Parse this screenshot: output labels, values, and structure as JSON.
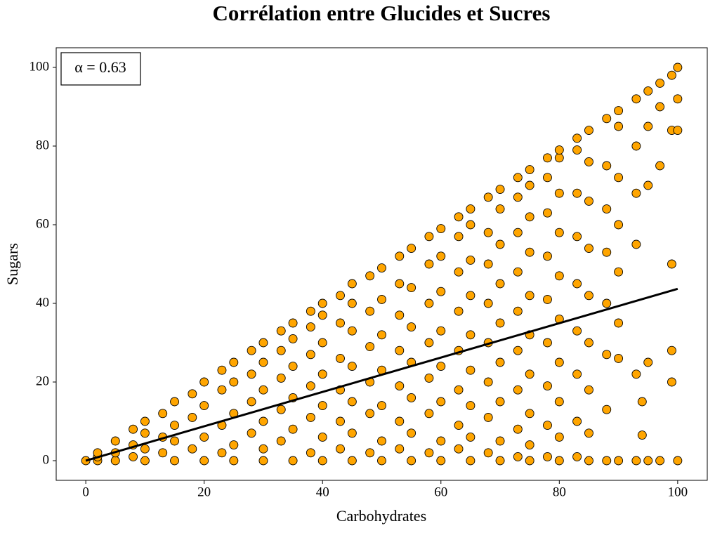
{
  "chart_data": {
    "type": "scatter",
    "title": "Corrélation entre Glucides et Sucres",
    "xlabel": "Carbohydrates",
    "ylabel": "Sugars",
    "annotation": "α = 0.63",
    "color": "#ffa500",
    "edgecolor": "#000000",
    "xlim": [
      -5,
      105
    ],
    "ylim": [
      -5,
      105
    ],
    "xticks": [
      0,
      20,
      40,
      60,
      80,
      100
    ],
    "yticks": [
      0,
      20,
      40,
      60,
      80,
      100
    ],
    "grid": false,
    "x": [
      0,
      2,
      2,
      2,
      5,
      5,
      5,
      8,
      8,
      8,
      10,
      10,
      10,
      10,
      13,
      13,
      13,
      15,
      15,
      15,
      15,
      18,
      18,
      18,
      20,
      20,
      20,
      20,
      23,
      23,
      23,
      23,
      25,
      25,
      25,
      25,
      25,
      28,
      28,
      28,
      28,
      30,
      30,
      30,
      30,
      30,
      30,
      33,
      33,
      33,
      33,
      33,
      35,
      35,
      35,
      35,
      35,
      35,
      38,
      38,
      38,
      38,
      38,
      38,
      40,
      40,
      40,
      40,
      40,
      40,
      40,
      43,
      43,
      43,
      43,
      43,
      43,
      45,
      45,
      45,
      45,
      45,
      45,
      45,
      48,
      48,
      48,
      48,
      48,
      48,
      50,
      50,
      50,
      50,
      50,
      50,
      50,
      53,
      53,
      53,
      53,
      53,
      53,
      53,
      55,
      55,
      55,
      55,
      55,
      55,
      55,
      58,
      58,
      58,
      58,
      58,
      58,
      58,
      60,
      60,
      60,
      60,
      60,
      60,
      60,
      60,
      63,
      63,
      63,
      63,
      63,
      63,
      63,
      63,
      65,
      65,
      65,
      65,
      65,
      65,
      65,
      65,
      65,
      68,
      68,
      68,
      68,
      68,
      68,
      68,
      68,
      70,
      70,
      70,
      70,
      70,
      70,
      70,
      70,
      70,
      73,
      73,
      73,
      73,
      73,
      73,
      73,
      73,
      73,
      75,
      75,
      75,
      75,
      75,
      75,
      75,
      75,
      75,
      75,
      78,
      78,
      78,
      78,
      78,
      78,
      78,
      78,
      78,
      80,
      80,
      80,
      80,
      80,
      80,
      80,
      80,
      80,
      80,
      83,
      83,
      83,
      83,
      83,
      83,
      83,
      83,
      83,
      85,
      85,
      85,
      85,
      85,
      85,
      85,
      85,
      85,
      88,
      88,
      88,
      88,
      88,
      88,
      88,
      88,
      90,
      90,
      90,
      90,
      90,
      90,
      90,
      90,
      93,
      93,
      93,
      93,
      93,
      93,
      94,
      94,
      95,
      95,
      95,
      95,
      95,
      97,
      97,
      97,
      97,
      99,
      99,
      99,
      99,
      99,
      100,
      100,
      100,
      100
    ],
    "y": [
      0,
      0,
      1,
      2,
      0,
      2,
      5,
      1,
      4,
      8,
      0,
      3,
      7,
      10,
      2,
      6,
      12,
      0,
      5,
      9,
      15,
      3,
      11,
      17,
      0,
      6,
      14,
      20,
      2,
      9,
      18,
      23,
      0,
      4,
      12,
      20,
      25,
      7,
      15,
      22,
      28,
      0,
      3,
      10,
      18,
      25,
      30,
      5,
      13,
      21,
      28,
      33,
      0,
      8,
      16,
      24,
      31,
      35,
      2,
      11,
      19,
      27,
      34,
      38,
      0,
      6,
      14,
      22,
      30,
      37,
      40,
      3,
      10,
      18,
      26,
      35,
      42,
      0,
      7,
      15,
      24,
      33,
      40,
      45,
      2,
      12,
      20,
      29,
      38,
      47,
      0,
      5,
      14,
      23,
      32,
      41,
      49,
      3,
      10,
      19,
      28,
      37,
      45,
      52,
      0,
      7,
      16,
      25,
      34,
      44,
      54,
      2,
      12,
      21,
      30,
      40,
      50,
      57,
      0,
      5,
      15,
      24,
      33,
      43,
      52,
      59,
      3,
      9,
      18,
      28,
      38,
      48,
      57,
      62,
      0,
      6,
      14,
      23,
      32,
      42,
      51,
      60,
      64,
      2,
      11,
      20,
      30,
      40,
      50,
      58,
      67,
      0,
      5,
      15,
      25,
      35,
      45,
      55,
      64,
      69,
      1,
      8,
      18,
      28,
      38,
      48,
      58,
      67,
      72,
      0,
      4,
      12,
      22,
      32,
      42,
      53,
      62,
      70,
      74,
      1,
      9,
      19,
      30,
      41,
      52,
      63,
      72,
      77,
      0,
      6,
      15,
      25,
      36,
      47,
      58,
      68,
      77,
      79,
      1,
      10,
      22,
      33,
      45,
      57,
      68,
      79,
      82,
      0,
      7,
      18,
      30,
      42,
      54,
      66,
      76,
      84,
      0,
      13,
      27,
      40,
      53,
      64,
      75,
      87,
      0,
      26,
      35,
      48,
      60,
      72,
      85,
      89,
      0,
      22,
      55,
      68,
      80,
      92,
      15,
      6.5,
      0,
      25,
      70,
      85,
      94,
      0,
      75,
      90,
      96,
      20,
      28,
      50,
      84,
      98,
      0,
      84,
      92,
      100
    ],
    "fit": {
      "x": [
        0,
        100
      ],
      "y": [
        0,
        43.7
      ],
      "color": "#000000"
    }
  }
}
